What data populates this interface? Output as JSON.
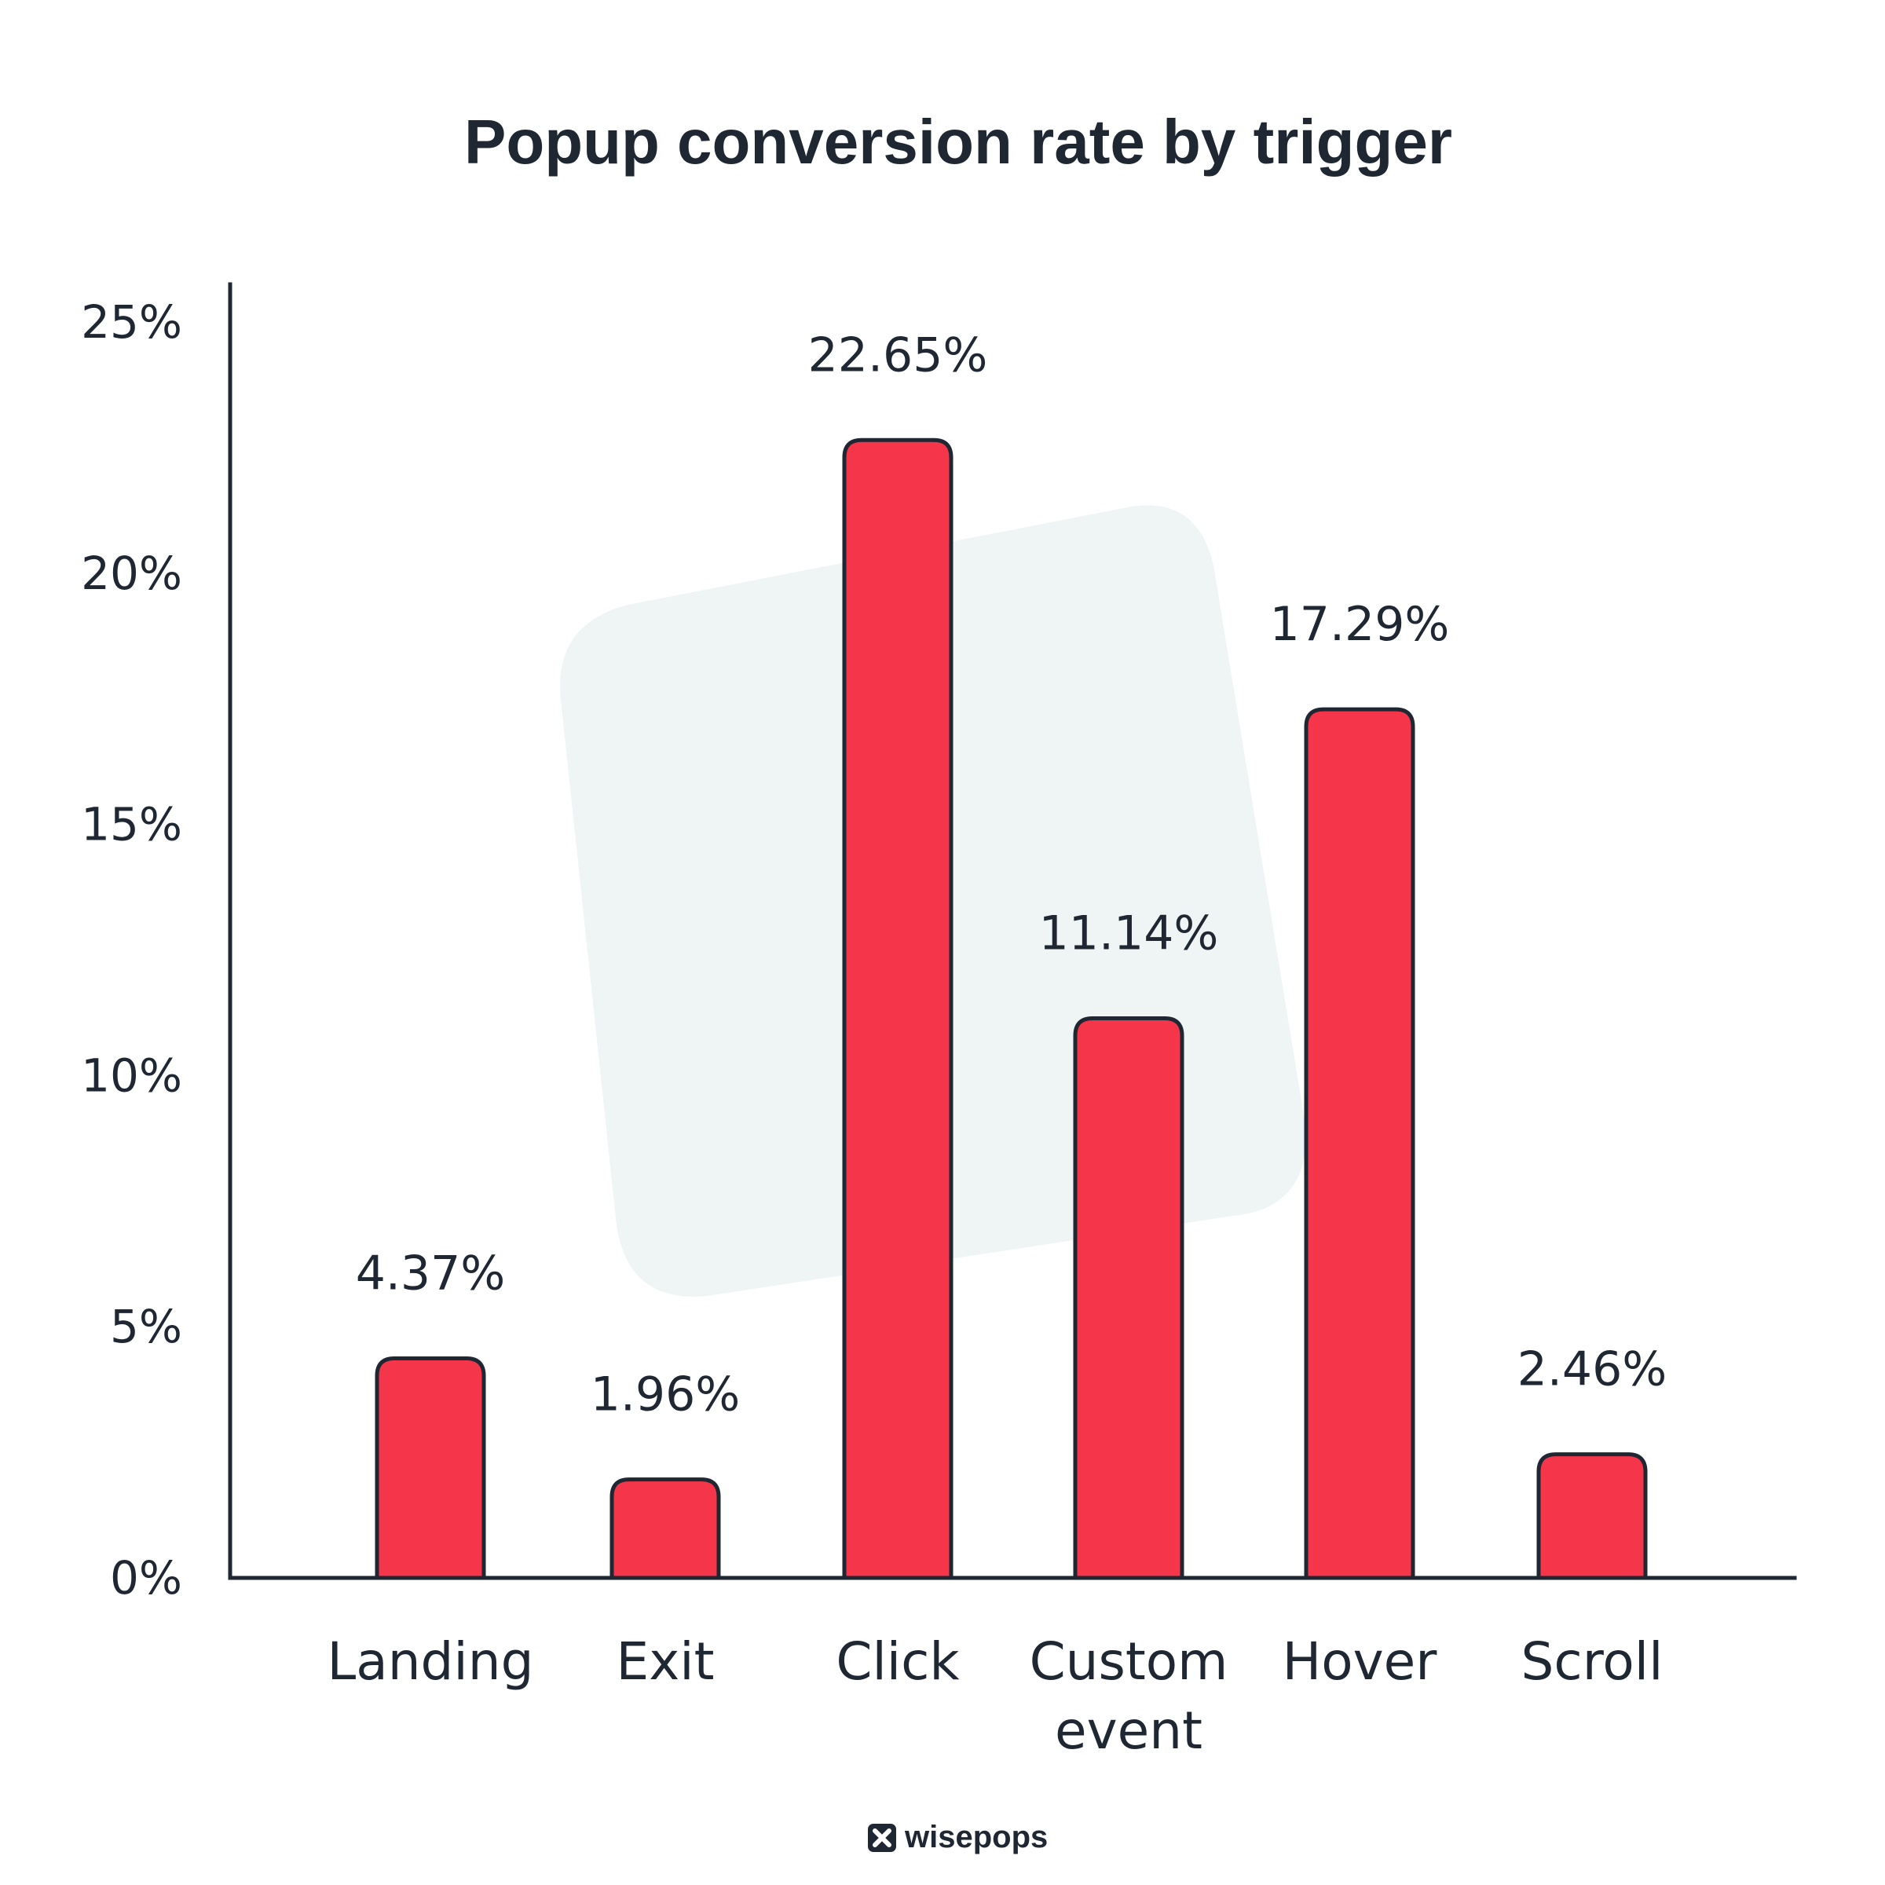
{
  "chart_data": {
    "type": "bar",
    "title": "Popup conversion rate by trigger",
    "xlabel": "",
    "ylabel": "",
    "ylim": [
      0,
      25
    ],
    "yticks": [
      "0%",
      "5%",
      "10%",
      "15%",
      "20%",
      "25%"
    ],
    "categories": [
      [
        "Landing"
      ],
      [
        "Exit"
      ],
      [
        "Click"
      ],
      [
        "Custom",
        "event"
      ],
      [
        "Hover"
      ],
      [
        "Scroll"
      ]
    ],
    "values": [
      4.37,
      1.96,
      22.65,
      11.14,
      17.29,
      2.46
    ],
    "value_labels": [
      "4.37%",
      "1.96%",
      "22.65%",
      "11.14%",
      "17.29%",
      "2.46%"
    ],
    "grid": false,
    "legend": "none"
  },
  "branding": {
    "logo_text": "wisepops"
  },
  "colors": {
    "bar_fill": "#f5364a",
    "bar_stroke": "#1e2732",
    "axis": "#1e2732",
    "background_shape": "#eff4f4",
    "text": "#1e2732"
  }
}
